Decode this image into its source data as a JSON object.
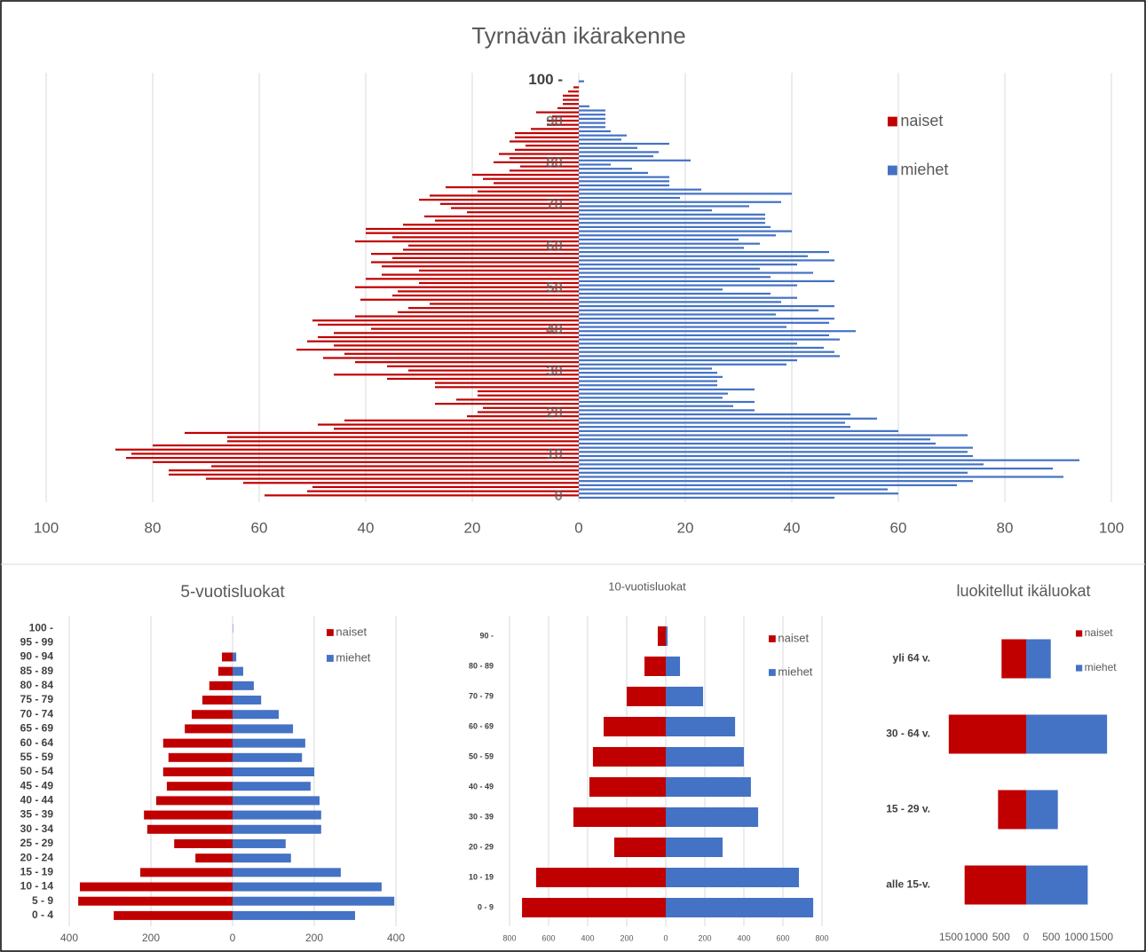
{
  "chart_data": [
    {
      "type": "pyramid",
      "title": "Tyrnävän ikärakenne",
      "categories": [
        "0",
        null,
        null,
        null,
        null,
        null,
        null,
        null,
        null,
        null,
        "10",
        null,
        null,
        null,
        null,
        null,
        null,
        null,
        null,
        null,
        "20",
        null,
        null,
        null,
        null,
        null,
        null,
        null,
        null,
        null,
        "30",
        null,
        null,
        null,
        null,
        null,
        null,
        null,
        null,
        null,
        "40",
        null,
        null,
        null,
        null,
        null,
        null,
        null,
        null,
        null,
        "50",
        null,
        null,
        null,
        null,
        null,
        null,
        null,
        null,
        null,
        "60",
        null,
        null,
        null,
        null,
        null,
        null,
        null,
        null,
        null,
        "70",
        null,
        null,
        null,
        null,
        null,
        null,
        null,
        null,
        null,
        "80",
        null,
        null,
        null,
        null,
        null,
        null,
        null,
        null,
        null,
        "90",
        null,
        null,
        null,
        null,
        null,
        null,
        null,
        null,
        null,
        "100 -"
      ],
      "series": [
        {
          "name": "naiset",
          "color": "#c00000",
          "values": [
            -59,
            -51,
            -50,
            -63,
            -70,
            -77,
            -77,
            -69,
            -80,
            -85,
            -84,
            -87,
            -80,
            -66,
            -66,
            -74,
            -46,
            -49,
            -44,
            -21,
            -19,
            -18,
            -27,
            -23,
            -19,
            -19,
            -27,
            -27,
            -36,
            -46,
            -32,
            -36,
            -42,
            -48,
            -44,
            -53,
            -46,
            -51,
            -49,
            -46,
            -39,
            -49,
            -50,
            -42,
            -34,
            -32,
            -28,
            -41,
            -35,
            -34,
            -42,
            -30,
            -40,
            -37,
            -30,
            -37,
            -39,
            -35,
            -39,
            -33,
            -32,
            -42,
            -35,
            -40,
            -40,
            -33,
            -27,
            -29,
            -21,
            -24,
            -26,
            -30,
            -28,
            -19,
            -25,
            -16,
            -18,
            -20,
            -13,
            -11,
            -16,
            -13,
            -15,
            -12,
            -10,
            -13,
            -12,
            -12,
            -9,
            -6,
            -6,
            -5,
            -8,
            -4,
            -3,
            -3,
            -3,
            -2,
            -1,
            0,
            0
          ]
        },
        {
          "name": "miehet",
          "color": "#4472c4",
          "values": [
            48,
            60,
            58,
            71,
            74,
            91,
            73,
            89,
            76,
            94,
            74,
            73,
            74,
            67,
            66,
            73,
            60,
            51,
            50,
            56,
            51,
            33,
            29,
            33,
            27,
            28,
            33,
            26,
            26,
            27,
            26,
            25,
            39,
            41,
            49,
            48,
            46,
            41,
            49,
            47,
            52,
            39,
            47,
            48,
            37,
            45,
            48,
            38,
            41,
            36,
            27,
            41,
            48,
            36,
            44,
            34,
            41,
            48,
            43,
            47,
            31,
            34,
            30,
            37,
            40,
            36,
            35,
            35,
            35,
            25,
            32,
            38,
            19,
            40,
            23,
            17,
            17,
            17,
            13,
            10,
            6,
            21,
            14,
            15,
            11,
            17,
            8,
            9,
            6,
            5,
            5,
            5,
            5,
            5,
            2,
            0,
            0,
            0,
            0,
            0,
            1
          ]
        }
      ],
      "xlim": [
        -100,
        100
      ],
      "xticks": [
        {
          "value": -100,
          "label": "100"
        },
        {
          "value": -80,
          "label": "80"
        },
        {
          "value": -60,
          "label": "60"
        },
        {
          "value": -40,
          "label": "40"
        },
        {
          "value": -20,
          "label": "20"
        },
        0,
        20,
        40,
        60,
        80,
        100
      ],
      "grid": true,
      "legend": "top-right"
    },
    {
      "type": "pyramid",
      "title": "5-vuotisluokat",
      "categories": [
        "0 - 4",
        "5 - 9",
        "10 - 14",
        "15 - 19",
        "20 - 24",
        "25 - 29",
        "30 - 34",
        "35 - 39",
        "40 - 44",
        "45 - 49",
        "50 - 54",
        "55 - 59",
        "60 - 64",
        "65 - 69",
        "70 - 74",
        "75 - 79",
        "80 - 84",
        "85 - 89",
        "90 - 94",
        "95 - 99",
        "100 -"
      ],
      "series": [
        {
          "name": "naiset",
          "color": "#c00000",
          "values": [
            -291,
            -378,
            -374,
            -226,
            -91,
            -143,
            -209,
            -217,
            -187,
            -161,
            -170,
            -157,
            -170,
            -117,
            -100,
            -74,
            -57,
            -35,
            -26,
            0,
            0
          ]
        },
        {
          "name": "miehet",
          "color": "#4472c4",
          "values": [
            300,
            396,
            365,
            265,
            143,
            130,
            217,
            217,
            213,
            191,
            200,
            170,
            178,
            148,
            113,
            70,
            52,
            26,
            9,
            0,
            1
          ]
        }
      ],
      "xlim": [
        -400,
        400
      ],
      "xticks": [
        {
          "value": -400,
          "label": "400"
        },
        {
          "value": -200,
          "label": "200"
        },
        0,
        200,
        400
      ],
      "grid": true,
      "legend": "top-right"
    },
    {
      "type": "pyramid",
      "title": "10-vuotisluokat",
      "categories": [
        "0 - 9",
        "10 - 19",
        "20 - 29",
        "30 - 39",
        "40 - 49",
        "50 - 59",
        "60 - 69",
        "70 - 79",
        "80 - 89",
        "90 -"
      ],
      "series": [
        {
          "name": "naiset",
          "color": "#c00000",
          "values": [
            -736,
            -664,
            -264,
            -473,
            -391,
            -373,
            -318,
            -200,
            -109,
            -41
          ]
        },
        {
          "name": "miehet",
          "color": "#4472c4",
          "values": [
            755,
            682,
            291,
            473,
            436,
            400,
            355,
            191,
            73,
            9
          ]
        }
      ],
      "xlim": [
        -800,
        800
      ],
      "xticks": [
        {
          "value": -800,
          "label": "800"
        },
        {
          "value": -600,
          "label": "600"
        },
        {
          "value": -400,
          "label": "400"
        },
        {
          "value": -200,
          "label": "200"
        },
        0,
        200,
        400,
        600,
        800
      ],
      "grid": true,
      "legend": "top-right"
    },
    {
      "type": "pyramid",
      "title": "luokitellut ikäluokat",
      "categories": [
        "alle 15-v.",
        "15 - 29 v.",
        "30 - 64 v.",
        "yli 64 v."
      ],
      "series": [
        {
          "name": "naiset",
          "color": "#c00000",
          "values": [
            -1228,
            -561,
            -1544,
            -491
          ]
        },
        {
          "name": "miehet",
          "color": "#4472c4",
          "values": [
            1228,
            632,
            1614,
            491
          ]
        }
      ],
      "xlim": [
        -1700,
        1700
      ],
      "xticks": [
        {
          "value": -1500,
          "label": "1500"
        },
        {
          "value": -1000,
          "label": "1000"
        },
        {
          "value": -500,
          "label": "500"
        },
        0,
        500,
        1000,
        1500
      ],
      "grid": false,
      "legend": "top-right"
    }
  ]
}
